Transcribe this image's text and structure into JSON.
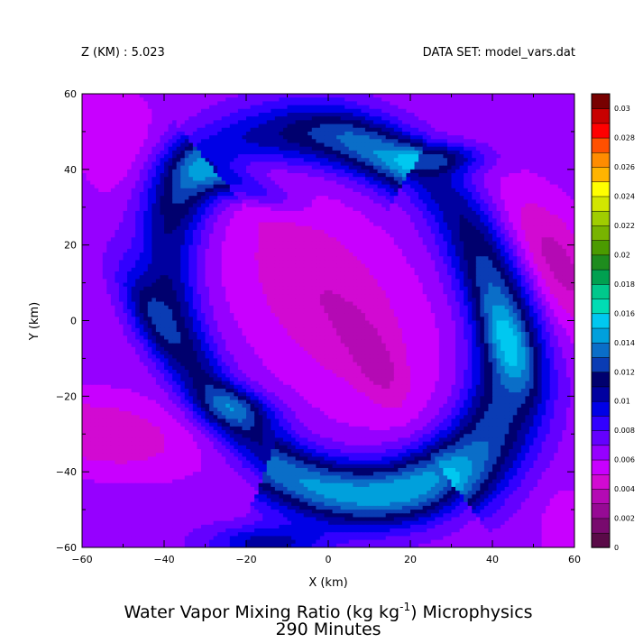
{
  "header": {
    "left": "Z (KM) : 5.023",
    "right": "DATA SET: model_vars.dat"
  },
  "chart_data": {
    "type": "heatmap",
    "title_line1_pre": "Water Vapor Mixing Ratio (kg kg",
    "title_sup": "-1",
    "title_line1_post": ") Microphysics",
    "title_line2": "290 Minutes",
    "xlabel": "X (km)",
    "ylabel": "Y (km)",
    "xlim": [
      -60,
      60
    ],
    "ylim": [
      -60,
      60
    ],
    "xticks": [
      -60,
      -40,
      -20,
      0,
      20,
      40,
      60
    ],
    "yticks": [
      -60,
      -40,
      -20,
      0,
      20,
      40,
      60
    ],
    "xtick_labels": [
      "−60",
      "−40",
      "−20",
      "0",
      "20",
      "40",
      "60"
    ],
    "ytick_labels": [
      "−60",
      "−40",
      "−20",
      "0",
      "20",
      "40",
      "60"
    ],
    "colorbar": {
      "range": [
        0,
        0.03
      ],
      "step": 0.001,
      "tick_labels": [
        "0",
        "0.002",
        "0.004",
        "0.006",
        "0.008",
        "0.01",
        "0.012",
        "0.014",
        "0.016",
        "0.018",
        "0.02",
        "0.022",
        "0.024",
        "0.026",
        "0.028",
        "0.03"
      ],
      "colors": [
        "#5a0a48",
        "#780a6e",
        "#960a94",
        "#b40ab4",
        "#d20ad2",
        "#c800ff",
        "#9600ff",
        "#6400ff",
        "#3200ff",
        "#0000e6",
        "#0000a0",
        "#00006e",
        "#0a3cb4",
        "#0a6ec8",
        "#00a0dc",
        "#00c8f0",
        "#00dcb4",
        "#00c88c",
        "#00a050",
        "#1e8c1e",
        "#4b9b00",
        "#78b400",
        "#a0cd00",
        "#d2e600",
        "#ffff00",
        "#ffb400",
        "#ff8c00",
        "#ff5000",
        "#ff0000",
        "#c80000",
        "#780000"
      ]
    },
    "field": {
      "background": 0.0065,
      "features": [
        {
          "shape": "band",
          "cx": 1,
          "cy": 2,
          "rx": 36,
          "ry": 50,
          "rot": 30,
          "a0": 100,
          "a1": 260,
          "width": 8,
          "amp": 0.0045
        },
        {
          "shape": "band",
          "cx": -3,
          "cy": -4,
          "rx": 46,
          "ry": 54,
          "rot": 28,
          "a0": 30,
          "a1": 90,
          "width": 8,
          "amp": 0.004
        },
        {
          "shape": "band",
          "cx": -2,
          "cy": 0,
          "rx": 40,
          "ry": 50,
          "rot": 30,
          "a0": 215,
          "a1": 345,
          "width": 8,
          "amp": 0.004
        },
        {
          "shape": "band",
          "cx": 0,
          "cy": 0,
          "rx": 44,
          "ry": 56,
          "rot": 35,
          "a0": 270,
          "a1": 395,
          "width": 8,
          "amp": 0.0035
        },
        {
          "shape": "blob",
          "x": -44,
          "y": 2,
          "rx": 5,
          "ry": 14,
          "rot": 25,
          "amp": 0.0035
        },
        {
          "shape": "blob",
          "x": -19,
          "y": 35,
          "rx": 12,
          "ry": 4,
          "rot": -20,
          "amp": 0.0035
        },
        {
          "shape": "blob",
          "x": 28,
          "y": 43,
          "rx": 11,
          "ry": 4,
          "rot": 0,
          "amp": 0.004
        },
        {
          "shape": "blob",
          "x": 44,
          "y": -6,
          "rx": 5,
          "ry": 13,
          "rot": 20,
          "amp": 0.0035
        },
        {
          "shape": "blob",
          "x": -22,
          "y": -23,
          "rx": 10,
          "ry": 5,
          "rot": -15,
          "amp": 0.0035
        },
        {
          "shape": "blob",
          "x": -15,
          "y": -59,
          "rx": 14,
          "ry": 5,
          "rot": 0,
          "amp": 0.004
        },
        {
          "shape": "blob",
          "x": 0,
          "y": 5,
          "rx": 18,
          "ry": 34,
          "rot": 35,
          "amp": -0.0025
        },
        {
          "shape": "blob",
          "x": 12,
          "y": -12,
          "rx": 5,
          "ry": 12,
          "rot": 25,
          "amp": -0.0015
        },
        {
          "shape": "blob",
          "x": -55,
          "y": -30,
          "rx": 22,
          "ry": 10,
          "rot": -10,
          "amp": -0.0025
        },
        {
          "shape": "blob",
          "x": 55,
          "y": 15,
          "rx": 10,
          "ry": 22,
          "rot": 30,
          "amp": -0.003
        },
        {
          "shape": "blob",
          "x": -20,
          "y": 38,
          "rx": 12,
          "ry": 8,
          "rot": -35,
          "amp": -0.0012
        },
        {
          "shape": "blob",
          "x": -50,
          "y": 45,
          "rx": 12,
          "ry": 20,
          "rot": 20,
          "amp": -0.0012
        },
        {
          "shape": "blob",
          "x": 58,
          "y": -55,
          "rx": 6,
          "ry": 10,
          "rot": 0,
          "amp": -0.0015
        }
      ]
    }
  }
}
